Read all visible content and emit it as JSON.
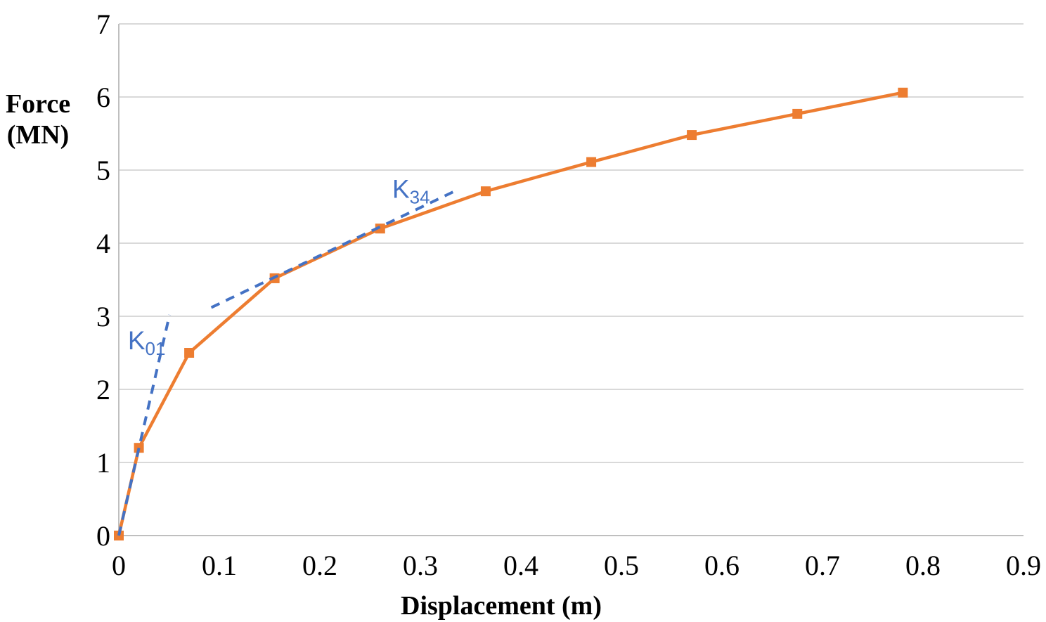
{
  "chart_data": {
    "type": "line",
    "title": "",
    "xlabel": "Displacement (m)",
    "ylabel": "Force (MN)",
    "ylabel_lines": [
      "Force",
      "(MN)"
    ],
    "xlim": [
      0,
      0.9
    ],
    "ylim": [
      0,
      7
    ],
    "grid": "horizontal-only",
    "legend_position": "none",
    "x_ticks": [
      0,
      0.1,
      0.2,
      0.3,
      0.4,
      0.5,
      0.6,
      0.7,
      0.8,
      0.9
    ],
    "x_tick_labels": [
      "0",
      "0.1",
      "0.2",
      "0.3",
      "0.4",
      "0.5",
      "0.6",
      "0.7",
      "0.8",
      "0.9"
    ],
    "y_ticks": [
      0,
      1,
      2,
      3,
      4,
      5,
      6,
      7
    ],
    "y_tick_labels": [
      "0",
      "1",
      "2",
      "3",
      "4",
      "5",
      "6",
      "7"
    ],
    "series": [
      {
        "name": "force-displacement-curve",
        "color": "#ED7D31",
        "marker": "square",
        "line_style": "solid",
        "x": [
          0,
          0.02,
          0.07,
          0.155,
          0.26,
          0.365,
          0.47,
          0.57,
          0.675,
          0.78
        ],
        "y": [
          0,
          1.2,
          2.5,
          3.52,
          4.2,
          4.71,
          5.11,
          5.48,
          5.77,
          6.06
        ]
      }
    ],
    "annotations": [
      {
        "name": "k01",
        "text": "K",
        "subscript": "01",
        "color": "#4472C4",
        "line_style": "dashed",
        "line": {
          "x1": 0,
          "y1": 0,
          "x2": 0.0505,
          "y2": 3.02
        },
        "label_pos": {
          "x": 0.009,
          "y": 2.55
        }
      },
      {
        "name": "k34",
        "text": "K",
        "subscript": "34",
        "color": "#4472C4",
        "line_style": "dashed",
        "line": {
          "x1": 0.092,
          "y1": 3.12,
          "x2": 0.337,
          "y2": 4.73
        },
        "label_pos": {
          "x": 0.272,
          "y": 4.62
        }
      }
    ]
  },
  "palette": {
    "gridline": "#D9D9D9",
    "axis_line": "#BFBFBF",
    "tick_text": "#000000",
    "background": "#FFFFFF"
  }
}
